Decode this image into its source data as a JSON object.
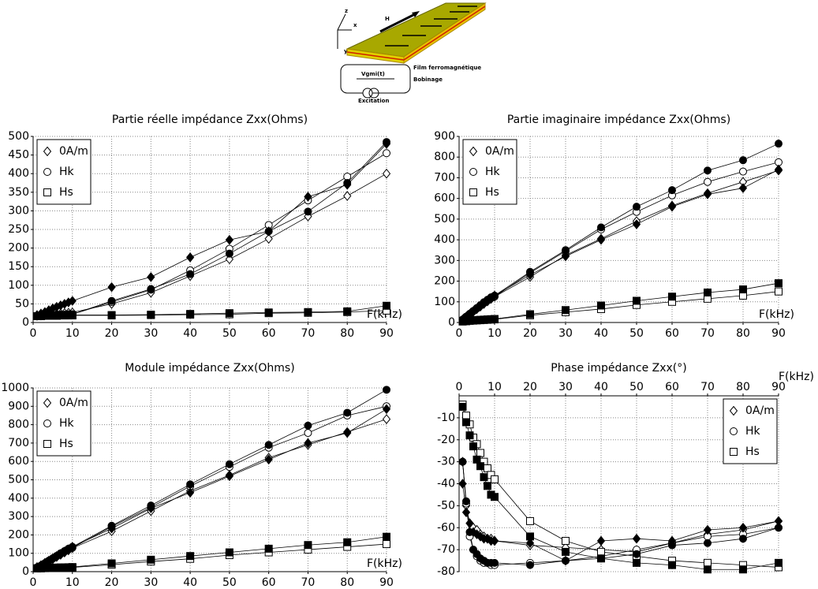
{
  "diagram": {
    "axis_labels": [
      "z",
      "x",
      "y"
    ],
    "field_label": "H",
    "film_label": "Film ferromagnétique",
    "coil_label": "Bobinage",
    "voltage_label": "Vgmi(t)",
    "excitation_label": "Excitation"
  },
  "chart_data": [
    {
      "type": "line",
      "title": "Partie réelle impédance Zxx(Ohms)",
      "x_label": "F(kHz)",
      "color": "#000000",
      "grid": true,
      "legend": "upper left",
      "x": [
        1,
        2,
        3,
        4,
        5,
        6,
        7,
        8,
        9,
        10,
        20,
        30,
        40,
        50,
        60,
        70,
        80,
        90
      ],
      "xlim": [
        0,
        90
      ],
      "xticks": [
        0,
        10,
        20,
        30,
        40,
        50,
        60,
        70,
        80,
        90
      ],
      "ylim": [
        0,
        500
      ],
      "yticks": [
        0,
        50,
        100,
        150,
        200,
        250,
        300,
        350,
        400,
        450,
        500
      ],
      "series": [
        {
          "name": "0A/m",
          "marker": "diamond",
          "filled": false,
          "values": [
            18,
            19,
            20,
            21,
            22,
            23,
            24,
            25,
            26,
            27,
            50,
            80,
            125,
            170,
            225,
            285,
            340,
            400
          ]
        },
        {
          "name": "Hk",
          "marker": "circle",
          "filled": false,
          "values": [
            18,
            18,
            19,
            19,
            20,
            20,
            21,
            21,
            22,
            22,
            55,
            88,
            140,
            198,
            262,
            328,
            392,
            455
          ]
        },
        {
          "name": "Hs",
          "marker": "square",
          "filled": false,
          "values": [
            17,
            17,
            18,
            18,
            18,
            18,
            19,
            19,
            19,
            19,
            19,
            20,
            21,
            22,
            25,
            26,
            28,
            32
          ]
        },
        {
          "marker": "diamond",
          "filled": true,
          "values": [
            20,
            24,
            28,
            33,
            38,
            42,
            46,
            50,
            54,
            58,
            95,
            122,
            175,
            222,
            245,
            338,
            370,
            480
          ]
        },
        {
          "marker": "circle",
          "filled": true,
          "values": [
            18,
            18,
            19,
            19,
            20,
            20,
            21,
            21,
            22,
            22,
            58,
            90,
            130,
            185,
            245,
            298,
            375,
            485
          ]
        },
        {
          "marker": "square",
          "filled": true,
          "values": [
            17,
            17,
            18,
            18,
            18,
            18,
            19,
            19,
            19,
            20,
            20,
            21,
            23,
            25,
            27,
            28,
            30,
            45
          ]
        }
      ]
    },
    {
      "type": "line",
      "title": "Partie imaginaire impédance Zxx(Ohms)",
      "x_label": "F(kHz)",
      "color": "#000000",
      "grid": true,
      "legend": "upper left",
      "x": [
        1,
        2,
        3,
        4,
        5,
        6,
        7,
        8,
        9,
        10,
        20,
        30,
        40,
        50,
        60,
        70,
        80,
        90
      ],
      "xlim": [
        0,
        90
      ],
      "xticks": [
        0,
        10,
        20,
        30,
        40,
        50,
        60,
        70,
        80,
        90
      ],
      "ylim": [
        0,
        900
      ],
      "yticks": [
        0,
        100,
        200,
        300,
        400,
        500,
        600,
        700,
        800,
        900
      ],
      "series": [
        {
          "name": "0A/m",
          "marker": "diamond",
          "filled": false,
          "values": [
            14,
            27,
            40,
            52,
            65,
            77,
            90,
            102,
            114,
            125,
            220,
            325,
            405,
            490,
            565,
            625,
            680,
            735
          ]
        },
        {
          "name": "Hk",
          "marker": "circle",
          "filled": false,
          "values": [
            14,
            28,
            42,
            55,
            68,
            81,
            94,
            106,
            118,
            125,
            240,
            345,
            450,
            535,
            615,
            680,
            730,
            775
          ]
        },
        {
          "name": "Hs",
          "marker": "square",
          "filled": false,
          "values": [
            5,
            6,
            8,
            9,
            10,
            11,
            12,
            13,
            14,
            15,
            35,
            50,
            65,
            85,
            100,
            115,
            130,
            150
          ]
        },
        {
          "marker": "diamond",
          "filled": true,
          "values": [
            15,
            28,
            42,
            55,
            68,
            80,
            92,
            105,
            118,
            130,
            230,
            320,
            400,
            475,
            560,
            620,
            650,
            740
          ]
        },
        {
          "marker": "circle",
          "filled": true,
          "values": [
            14,
            28,
            42,
            56,
            70,
            84,
            98,
            110,
            122,
            130,
            245,
            350,
            460,
            560,
            640,
            735,
            785,
            865
          ]
        },
        {
          "marker": "square",
          "filled": true,
          "values": [
            5,
            7,
            9,
            11,
            12,
            13,
            14,
            15,
            16,
            17,
            40,
            60,
            82,
            105,
            125,
            145,
            160,
            190
          ]
        }
      ]
    },
    {
      "type": "line",
      "title": "Module impédance Zxx(Ohms)",
      "x_label": "F(kHz)",
      "color": "#000000",
      "grid": true,
      "legend": "upper left",
      "x": [
        1,
        2,
        3,
        4,
        5,
        6,
        7,
        8,
        9,
        10,
        20,
        30,
        40,
        50,
        60,
        70,
        80,
        90
      ],
      "xlim": [
        0,
        90
      ],
      "xticks": [
        0,
        10,
        20,
        30,
        40,
        50,
        60,
        70,
        80,
        90
      ],
      "ylim": [
        0,
        1000
      ],
      "yticks": [
        0,
        100,
        200,
        300,
        400,
        500,
        600,
        700,
        800,
        900,
        1000
      ],
      "series": [
        {
          "name": "0A/m",
          "marker": "diamond",
          "filled": false,
          "values": [
            23,
            32,
            44,
            56,
            68,
            80,
            92,
            104,
            116,
            128,
            220,
            330,
            440,
            525,
            620,
            690,
            760,
            830
          ]
        },
        {
          "name": "Hk",
          "marker": "circle",
          "filled": false,
          "values": [
            23,
            33,
            46,
            58,
            71,
            84,
            97,
            109,
            121,
            130,
            245,
            350,
            465,
            570,
            675,
            755,
            850,
            900
          ]
        },
        {
          "name": "Hs",
          "marker": "square",
          "filled": false,
          "values": [
            18,
            18,
            19,
            20,
            21,
            21,
            22,
            22,
            23,
            23,
            38,
            55,
            70,
            90,
            105,
            120,
            135,
            150
          ]
        },
        {
          "marker": "diamond",
          "filled": true,
          "values": [
            25,
            35,
            48,
            60,
            72,
            85,
            97,
            110,
            122,
            135,
            235,
            345,
            430,
            520,
            610,
            700,
            755,
            885
          ]
        },
        {
          "marker": "circle",
          "filled": true,
          "values": [
            23,
            33,
            46,
            60,
            73,
            86,
            100,
            112,
            125,
            135,
            250,
            360,
            475,
            585,
            690,
            795,
            865,
            990
          ]
        },
        {
          "marker": "square",
          "filled": true,
          "values": [
            18,
            19,
            20,
            21,
            22,
            22,
            23,
            23,
            24,
            25,
            45,
            65,
            85,
            105,
            125,
            145,
            160,
            190
          ]
        }
      ]
    },
    {
      "type": "line",
      "title": "Phase impédance Zxx(°)",
      "x_label": "F(kHz)",
      "color": "#000000",
      "grid": true,
      "legend": "upper right",
      "x": [
        1,
        2,
        3,
        4,
        5,
        6,
        7,
        8,
        9,
        10,
        20,
        30,
        40,
        50,
        60,
        70,
        80,
        90
      ],
      "xlim": [
        0,
        90
      ],
      "xticks": [
        0,
        10,
        20,
        30,
        40,
        50,
        60,
        70,
        80,
        90
      ],
      "ylim": [
        -80,
        0
      ],
      "yticks": [
        -10,
        -20,
        -30,
        -40,
        -50,
        -60,
        -70,
        -80
      ],
      "series": [
        {
          "name": "0A/m",
          "marker": "diamond",
          "filled": false,
          "values": [
            -30,
            -50,
            -58,
            -60,
            -61,
            -63,
            -64,
            -65,
            -65,
            -66,
            -68,
            -69,
            -70,
            -71,
            -67,
            -63,
            -61,
            -57
          ]
        },
        {
          "name": "Hk",
          "marker": "circle",
          "filled": false,
          "values": [
            -30,
            -49,
            -64,
            -70,
            -73,
            -75,
            -76,
            -76,
            -77,
            -77,
            -76,
            -75,
            -73,
            -70,
            -67,
            -64,
            -63,
            -60
          ]
        },
        {
          "name": "Hs",
          "marker": "square",
          "filled": false,
          "values": [
            -4,
            -9,
            -13,
            -19,
            -22,
            -26,
            -30,
            -33,
            -36,
            -38,
            -57,
            -66,
            -71,
            -73,
            -75,
            -76,
            -77,
            -78
          ]
        },
        {
          "marker": "diamond",
          "filled": true,
          "values": [
            -40,
            -53,
            -58,
            -62,
            -63,
            -64,
            -65,
            -65,
            -66,
            -66,
            -67,
            -75,
            -66,
            -65,
            -66,
            -61,
            -60,
            -57
          ]
        },
        {
          "marker": "circle",
          "filled": true,
          "values": [
            -30,
            -48,
            -62,
            -70,
            -72,
            -74,
            -75,
            -76,
            -76,
            -76,
            -77,
            -75,
            -74,
            -72,
            -68,
            -67,
            -65,
            -60
          ]
        },
        {
          "marker": "square",
          "filled": true,
          "values": [
            -5,
            -12,
            -18,
            -23,
            -29,
            -32,
            -37,
            -41,
            -45,
            -46,
            -64,
            -71,
            -74,
            -76,
            -77,
            -79,
            -79,
            -76
          ]
        }
      ]
    }
  ]
}
